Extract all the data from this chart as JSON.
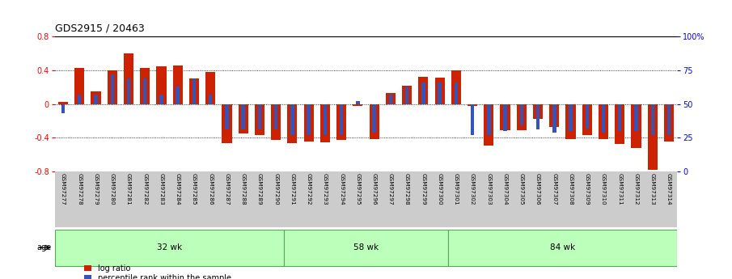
{
  "title": "GDS2915 / 20463",
  "samples": [
    "GSM97277",
    "GSM97278",
    "GSM97279",
    "GSM97280",
    "GSM97281",
    "GSM97282",
    "GSM97283",
    "GSM97284",
    "GSM97285",
    "GSM97286",
    "GSM97287",
    "GSM97288",
    "GSM97289",
    "GSM97290",
    "GSM97291",
    "GSM97292",
    "GSM97293",
    "GSM97294",
    "GSM97295",
    "GSM97296",
    "GSM97297",
    "GSM97298",
    "GSM97299",
    "GSM97300",
    "GSM97301",
    "GSM97302",
    "GSM97303",
    "GSM97304",
    "GSM97305",
    "GSM97306",
    "GSM97307",
    "GSM97308",
    "GSM97309",
    "GSM97310",
    "GSM97311",
    "GSM97312",
    "GSM97313",
    "GSM97314"
  ],
  "log_ratio": [
    0.02,
    0.43,
    0.15,
    0.4,
    0.6,
    0.43,
    0.44,
    0.45,
    0.3,
    0.38,
    -0.46,
    -0.35,
    -0.37,
    -0.43,
    -0.46,
    -0.44,
    -0.45,
    -0.43,
    -0.02,
    -0.42,
    0.13,
    0.22,
    0.32,
    0.31,
    0.4,
    -0.02,
    -0.49,
    -0.31,
    -0.31,
    -0.18,
    -0.27,
    -0.42,
    -0.37,
    -0.42,
    -0.47,
    -0.52,
    -0.78,
    -0.44
  ],
  "percentile_raw": [
    43,
    57,
    57,
    72,
    69,
    69,
    57,
    63,
    69,
    57,
    31,
    31,
    31,
    31,
    27,
    27,
    27,
    27,
    52,
    29,
    57,
    63,
    66,
    66,
    66,
    27,
    27,
    30,
    34,
    31,
    29,
    30,
    32,
    29,
    30,
    30,
    27,
    27
  ],
  "groups": [
    {
      "label": "32 wk",
      "start": 0,
      "end": 14
    },
    {
      "label": "58 wk",
      "start": 14,
      "end": 24
    },
    {
      "label": "84 wk",
      "start": 24,
      "end": 38
    }
  ],
  "ylim": [
    -0.8,
    0.8
  ],
  "yticks_left": [
    -0.8,
    -0.4,
    0.0,
    0.4,
    0.8
  ],
  "yticks_right_pct": [
    0,
    25,
    50,
    75,
    100
  ],
  "right_ylabels": [
    "0",
    "25",
    "50",
    "75",
    "100%"
  ],
  "hlines": [
    -0.4,
    0.0,
    0.4
  ],
  "bar_color_red": "#cc2200",
  "bar_color_blue": "#3355bb",
  "group_bg": "#bbffbb",
  "group_border": "#55aa55",
  "tick_bg": "#cccccc",
  "bg_color": "#ffffff",
  "bar_width": 0.6,
  "blue_bar_width": 0.22
}
